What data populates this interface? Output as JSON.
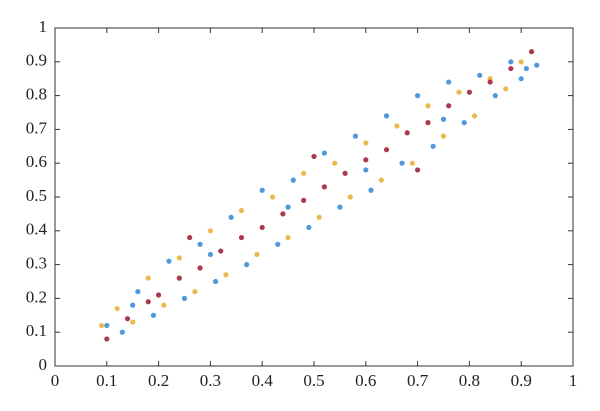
{
  "chart_data": {
    "type": "scatter",
    "xlim": [
      0,
      1
    ],
    "ylim": [
      0,
      1
    ],
    "xticks": [
      0,
      0.1,
      0.2,
      0.3,
      0.4,
      0.5,
      0.6,
      0.7,
      0.8,
      0.9,
      1
    ],
    "yticks": [
      0,
      0.1,
      0.2,
      0.3,
      0.4,
      0.5,
      0.6,
      0.7,
      0.8,
      0.9,
      1
    ],
    "grid": false,
    "series": [
      {
        "color": "#3b8ed6",
        "x": [
          0.1,
          0.13,
          0.16,
          0.19,
          0.22,
          0.25,
          0.28,
          0.31,
          0.34,
          0.37,
          0.4,
          0.43,
          0.46,
          0.49,
          0.52,
          0.55,
          0.58,
          0.61,
          0.64,
          0.67,
          0.7,
          0.73,
          0.76,
          0.79,
          0.82,
          0.85,
          0.88,
          0.91,
          0.93,
          0.15,
          0.3,
          0.45,
          0.6,
          0.75,
          0.9
        ],
        "values": [
          0.12,
          0.1,
          0.22,
          0.15,
          0.31,
          0.2,
          0.36,
          0.25,
          0.44,
          0.3,
          0.52,
          0.36,
          0.55,
          0.41,
          0.63,
          0.47,
          0.68,
          0.52,
          0.74,
          0.6,
          0.8,
          0.65,
          0.84,
          0.72,
          0.86,
          0.8,
          0.9,
          0.88,
          0.89,
          0.18,
          0.33,
          0.47,
          0.58,
          0.73,
          0.85
        ]
      },
      {
        "color": "#e8b23a",
        "x": [
          0.09,
          0.12,
          0.15,
          0.18,
          0.21,
          0.24,
          0.27,
          0.3,
          0.33,
          0.36,
          0.39,
          0.42,
          0.45,
          0.48,
          0.51,
          0.54,
          0.57,
          0.6,
          0.63,
          0.66,
          0.69,
          0.72,
          0.75,
          0.78,
          0.81,
          0.84,
          0.87,
          0.9
        ],
        "values": [
          0.12,
          0.17,
          0.13,
          0.26,
          0.18,
          0.32,
          0.22,
          0.4,
          0.27,
          0.46,
          0.33,
          0.5,
          0.38,
          0.57,
          0.44,
          0.6,
          0.5,
          0.66,
          0.55,
          0.71,
          0.6,
          0.77,
          0.68,
          0.81,
          0.74,
          0.85,
          0.82,
          0.9
        ]
      },
      {
        "color": "#a4243b",
        "x": [
          0.1,
          0.14,
          0.18,
          0.2,
          0.24,
          0.28,
          0.32,
          0.36,
          0.4,
          0.44,
          0.48,
          0.52,
          0.56,
          0.6,
          0.64,
          0.68,
          0.72,
          0.76,
          0.8,
          0.84,
          0.88,
          0.92,
          0.26,
          0.5,
          0.7
        ],
        "values": [
          0.08,
          0.14,
          0.19,
          0.21,
          0.26,
          0.29,
          0.34,
          0.38,
          0.41,
          0.45,
          0.49,
          0.53,
          0.57,
          0.61,
          0.64,
          0.69,
          0.72,
          0.77,
          0.81,
          0.84,
          0.88,
          0.93,
          0.38,
          0.62,
          0.58
        ]
      }
    ]
  }
}
